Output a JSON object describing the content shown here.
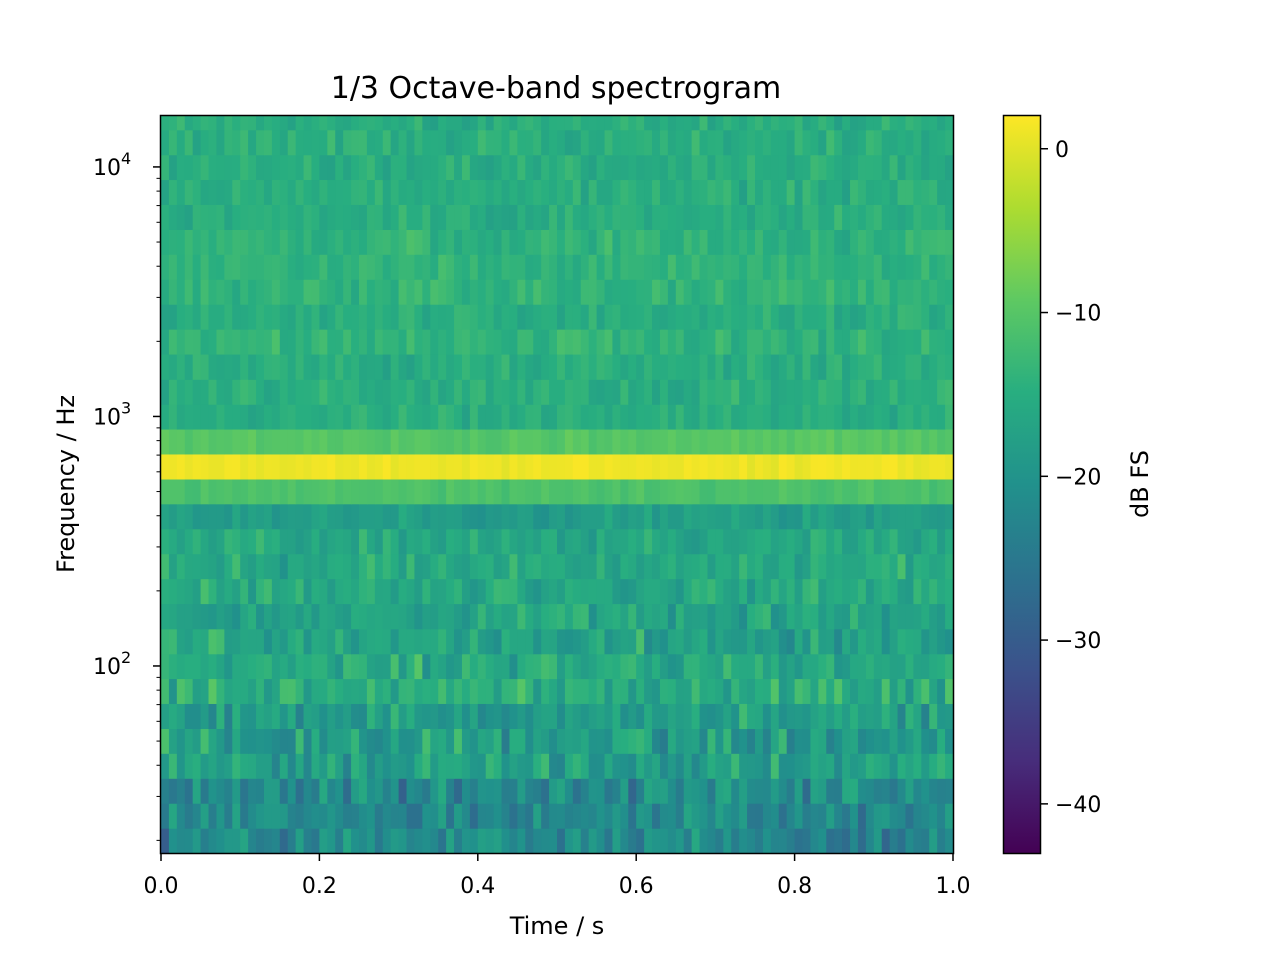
{
  "chart_data": {
    "type": "heatmap",
    "title": "1/3 Octave-band spectrogram",
    "xlabel": "Time / s",
    "ylabel": "Frequency / Hz",
    "colorbar_label": "dB FS",
    "colormap": "viridis",
    "x_scale": "linear",
    "y_scale": "log",
    "xlim": [
      0.0,
      1.0
    ],
    "ylim": [
      17.8,
      16000
    ],
    "clim": [
      -43,
      2
    ],
    "x_ticks": [
      {
        "value": 0.0,
        "label": "0.0"
      },
      {
        "value": 0.2,
        "label": "0.2"
      },
      {
        "value": 0.4,
        "label": "0.4"
      },
      {
        "value": 0.6,
        "label": "0.6"
      },
      {
        "value": 0.8,
        "label": "0.8"
      },
      {
        "value": 1.0,
        "label": "1.0"
      }
    ],
    "y_ticks": [
      {
        "value": 100,
        "base": "10",
        "exp": "2"
      },
      {
        "value": 1000,
        "base": "10",
        "exp": "3"
      },
      {
        "value": 10000,
        "base": "10",
        "exp": "4"
      }
    ],
    "colorbar_ticks": [
      {
        "value": 0,
        "label": "0"
      },
      {
        "value": -10,
        "label": "−10"
      },
      {
        "value": -20,
        "label": "−20"
      },
      {
        "value": -30,
        "label": "−30"
      },
      {
        "value": -40,
        "label": "−40"
      }
    ],
    "time_frames": 100,
    "band_edges_hz": [
      17.8,
      22.4,
      28.2,
      35.5,
      44.7,
      56.2,
      70.8,
      89.1,
      112,
      141,
      178,
      224,
      282,
      355,
      447,
      562,
      708,
      891,
      1120,
      1410,
      1780,
      2240,
      2820,
      3550,
      4470,
      5620,
      7080,
      8910,
      11200,
      14100,
      16000
    ],
    "band_levels_db": [
      -22,
      -22,
      -22,
      -18,
      -18,
      -18,
      -15,
      -16,
      -17,
      -17,
      -16,
      -16,
      -16,
      -18,
      -11,
      1,
      -10,
      -15,
      -15,
      -15,
      -14,
      -15,
      -14,
      -14,
      -14,
      -15,
      -15,
      -15,
      -15,
      -15
    ],
    "band_variation_db": [
      8,
      7,
      8,
      7,
      7,
      6,
      6,
      6,
      6,
      5,
      5,
      5,
      4,
      3,
      1.5,
      1,
      1.5,
      3,
      3,
      3,
      3,
      3,
      3,
      3,
      3,
      3,
      3,
      3,
      3,
      3
    ]
  }
}
